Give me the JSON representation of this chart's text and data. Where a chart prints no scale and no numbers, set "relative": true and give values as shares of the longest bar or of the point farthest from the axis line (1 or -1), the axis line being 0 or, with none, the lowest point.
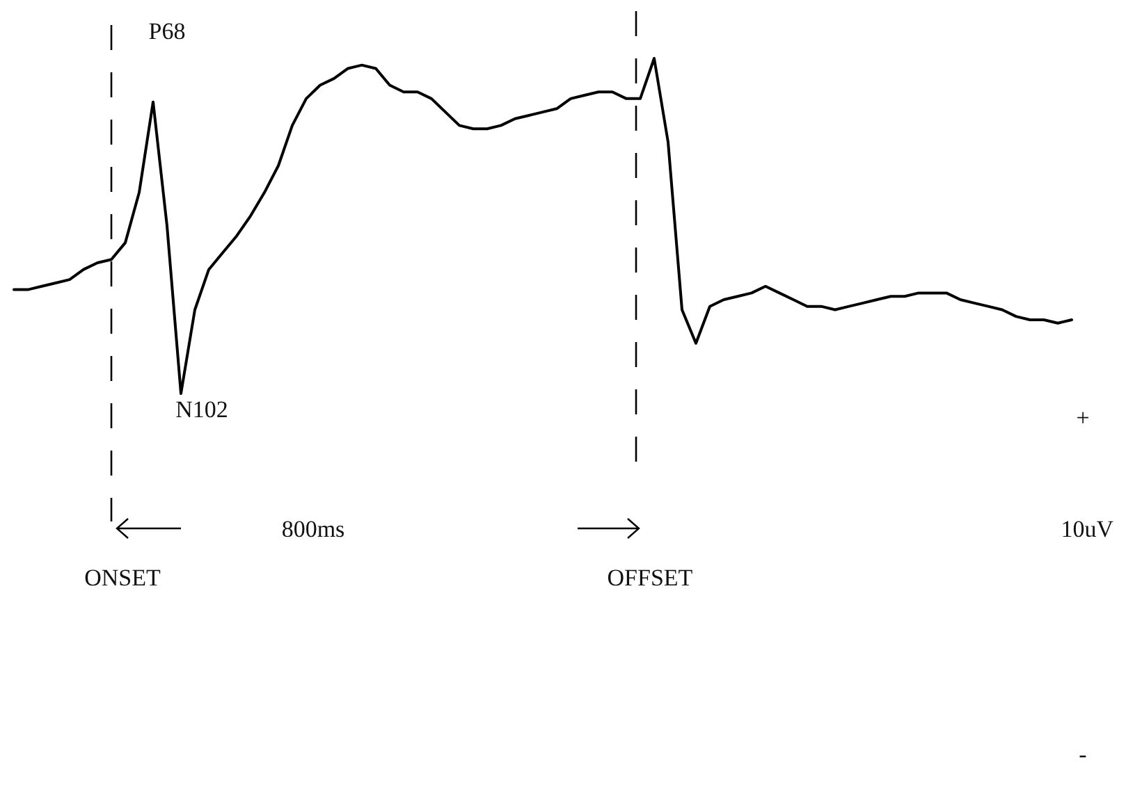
{
  "chart_data": {
    "type": "line",
    "relative": true,
    "tick_labels": false,
    "line_style": "solid",
    "categories": [
      null,
      null,
      null,
      null,
      null,
      null,
      null,
      null,
      null,
      null,
      null,
      null,
      null,
      null,
      null,
      null,
      null,
      null,
      null,
      null,
      null,
      null,
      null,
      null,
      null,
      null,
      null,
      null,
      null,
      null,
      null,
      null,
      null,
      null,
      null,
      null,
      null,
      null,
      null,
      null,
      null,
      null,
      null,
      null,
      null,
      null,
      null,
      null,
      null,
      null,
      null,
      null,
      null,
      null,
      null,
      null,
      null,
      null,
      null,
      null,
      null,
      null,
      null,
      null,
      null,
      null,
      null,
      null,
      null,
      null,
      null,
      null,
      null,
      null,
      null,
      null,
      null
    ],
    "series": [
      {
        "color": "#000000",
        "values": [
          0.31,
          0.31,
          0.32,
          0.33,
          0.34,
          0.37,
          0.39,
          0.4,
          0.45,
          0.6,
          0.87,
          0.5,
          0,
          0.25,
          0.37,
          0.42,
          0.47,
          0.53,
          0.6,
          0.68,
          0.8,
          0.88,
          0.92,
          0.94,
          0.97,
          0.98,
          0.97,
          0.92,
          0.9,
          0.9,
          0.88,
          0.84,
          0.8,
          0.79,
          0.79,
          0.8,
          0.82,
          0.83,
          0.84,
          0.85,
          0.88,
          0.89,
          0.9,
          0.9,
          0.88,
          0.88,
          1.0,
          0.75,
          0.25,
          0.15,
          0.26,
          0.28,
          0.29,
          0.3,
          0.32,
          0.3,
          0.28,
          0.26,
          0.26,
          0.25,
          0.26,
          0.27,
          0.28,
          0.29,
          0.29,
          0.3,
          0.3,
          0.3,
          0.28,
          0.27,
          0.26,
          0.25,
          0.23,
          0.22,
          0.22,
          0.21,
          0.22
        ]
      }
    ],
    "annotations": [
      "P68",
      "N102",
      "ONSET",
      "OFFSET",
      "800ms",
      "+",
      "10uV",
      "-"
    ]
  }
}
